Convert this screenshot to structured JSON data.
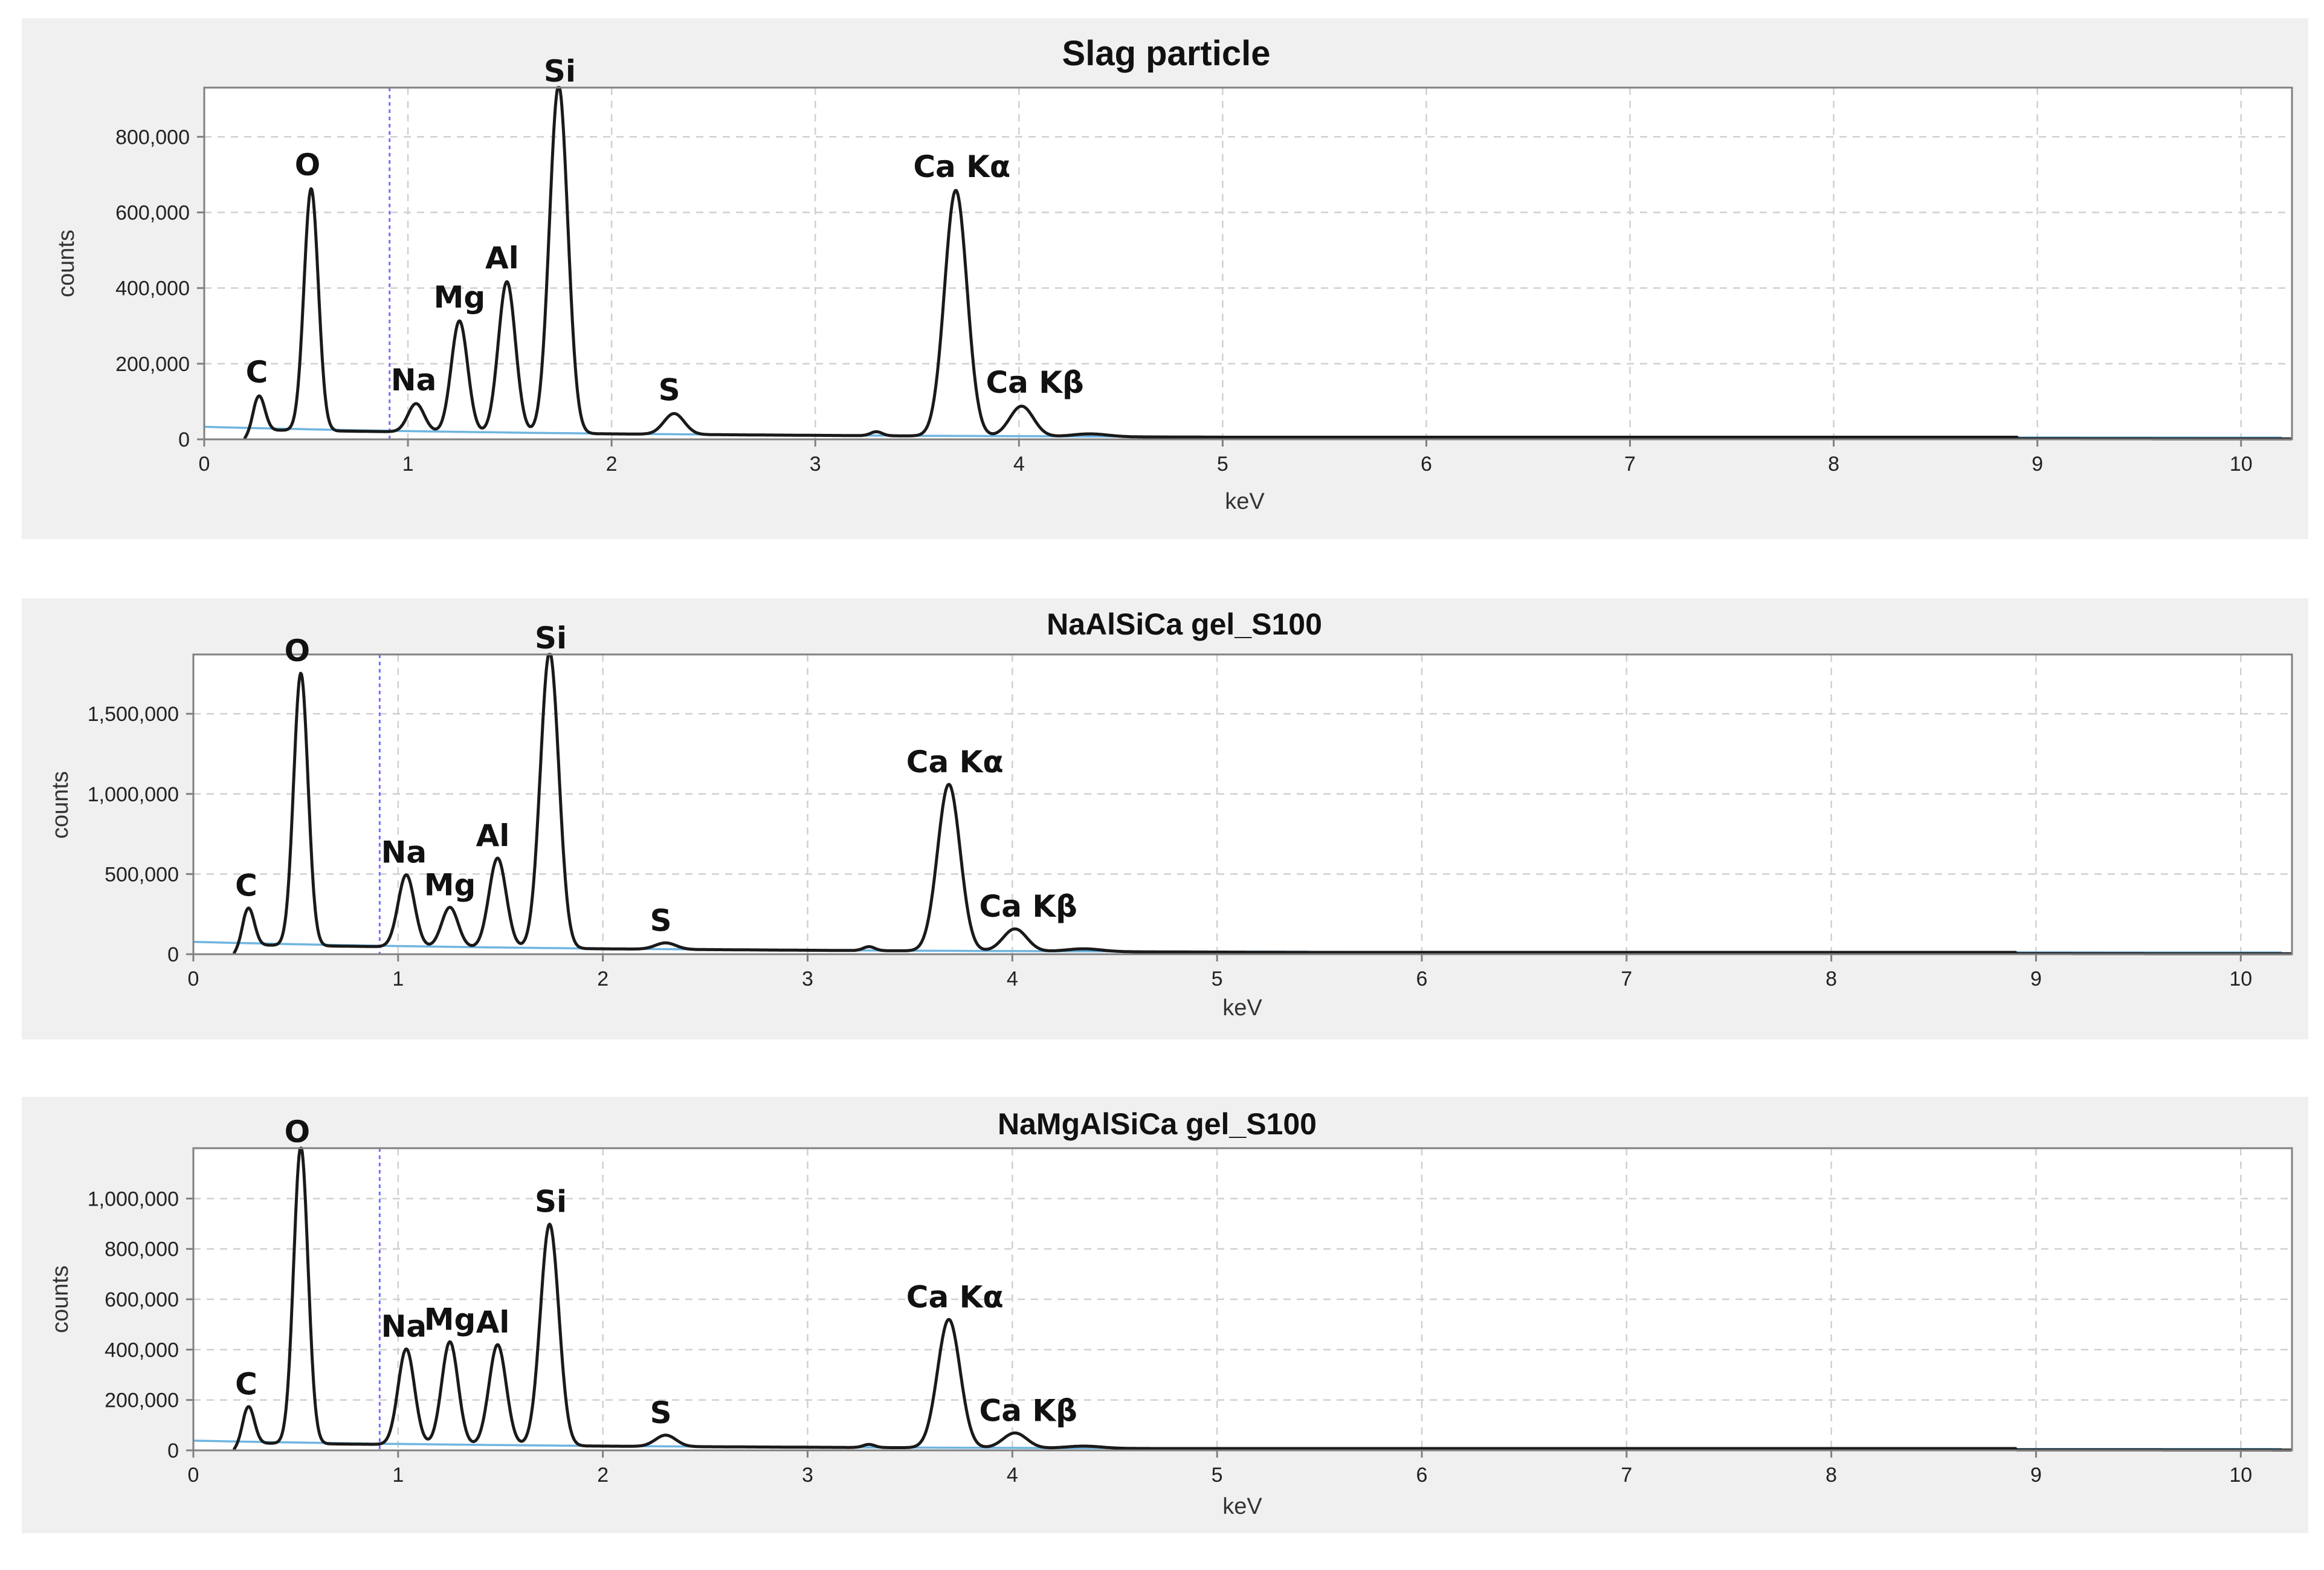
{
  "chart_data": [
    {
      "type": "line",
      "title": "Slag particle",
      "xlabel": "keV",
      "ylabel": "counts",
      "xlim": [
        0,
        10.25
      ],
      "ylim": [
        0,
        930000
      ],
      "xticks": [
        0,
        1,
        2,
        3,
        4,
        5,
        6,
        7,
        8,
        9,
        10
      ],
      "yticks": [
        0,
        200000,
        400000,
        600000,
        800000
      ],
      "ytick_labels": [
        "0",
        "200,000",
        "400,000",
        "600,000",
        "800,000"
      ],
      "grid": true,
      "marker_line_kev": 0.91,
      "background_level": 30000,
      "peaks": [
        {
          "label": "C",
          "kev": 0.27,
          "counts": 90000,
          "width": 0.028
        },
        {
          "label": "O",
          "kev": 0.525,
          "counts": 640000,
          "width": 0.035
        },
        {
          "label": "Na",
          "kev": 1.04,
          "counts": 75000,
          "width": 0.04
        },
        {
          "label": "Mg",
          "kev": 1.253,
          "counts": 295000,
          "width": 0.04
        },
        {
          "label": "Al",
          "kev": 1.486,
          "counts": 400000,
          "width": 0.042
        },
        {
          "label": "Si",
          "kev": 1.74,
          "counts": 920000,
          "width": 0.045
        },
        {
          "label": "S",
          "kev": 2.307,
          "counts": 55000,
          "width": 0.05
        },
        {
          "label": "Ca Kα",
          "kev": 3.69,
          "counts": 650000,
          "width": 0.055
        },
        {
          "label": "Ca Kβ",
          "kev": 4.013,
          "counts": 80000,
          "width": 0.058
        }
      ]
    },
    {
      "type": "line",
      "title": "NaAlSiCa gel_S100",
      "xlabel": "keV",
      "ylabel": "counts",
      "xlim": [
        0,
        10.25
      ],
      "ylim": [
        0,
        1870000
      ],
      "xticks": [
        0,
        1,
        2,
        3,
        4,
        5,
        6,
        7,
        8,
        9,
        10
      ],
      "yticks": [
        0,
        500000,
        1000000,
        1500000
      ],
      "ytick_labels": [
        "0",
        "500,000",
        "1,000,000",
        "1,500,000"
      ],
      "grid": true,
      "marker_line_kev": 0.91,
      "background_level": 70000,
      "peaks": [
        {
          "label": "C",
          "kev": 0.27,
          "counts": 230000,
          "width": 0.028
        },
        {
          "label": "O",
          "kev": 0.525,
          "counts": 1700000,
          "width": 0.035
        },
        {
          "label": "Na",
          "kev": 1.04,
          "counts": 450000,
          "width": 0.04
        },
        {
          "label": "Mg",
          "kev": 1.253,
          "counts": 250000,
          "width": 0.04
        },
        {
          "label": "Al",
          "kev": 1.486,
          "counts": 560000,
          "width": 0.042
        },
        {
          "label": "Si",
          "kev": 1.74,
          "counts": 1850000,
          "width": 0.045
        },
        {
          "label": "S",
          "kev": 2.307,
          "counts": 40000,
          "width": 0.05
        },
        {
          "label": "Ca Kα",
          "kev": 3.69,
          "counts": 1040000,
          "width": 0.055
        },
        {
          "label": "Ca Kβ",
          "kev": 4.013,
          "counts": 140000,
          "width": 0.058
        }
      ]
    },
    {
      "type": "line",
      "title": "NaMgAlSiCa gel_S100",
      "xlabel": "keV",
      "ylabel": "counts",
      "xlim": [
        0,
        10.25
      ],
      "ylim": [
        0,
        1200000
      ],
      "xticks": [
        0,
        1,
        2,
        3,
        4,
        5,
        6,
        7,
        8,
        9,
        10
      ],
      "yticks": [
        0,
        200000,
        400000,
        600000,
        800000,
        1000000
      ],
      "ytick_labels": [
        "0",
        "200,000",
        "400,000",
        "600,000",
        "800,000",
        "1,000,000"
      ],
      "grid": true,
      "marker_line_kev": 0.91,
      "background_level": 35000,
      "peaks": [
        {
          "label": "C",
          "kev": 0.27,
          "counts": 145000,
          "width": 0.028
        },
        {
          "label": "O",
          "kev": 0.525,
          "counts": 1180000,
          "width": 0.035
        },
        {
          "label": "Na",
          "kev": 1.04,
          "counts": 380000,
          "width": 0.04
        },
        {
          "label": "Mg",
          "kev": 1.253,
          "counts": 410000,
          "width": 0.04
        },
        {
          "label": "Al",
          "kev": 1.486,
          "counts": 400000,
          "width": 0.042
        },
        {
          "label": "Si",
          "kev": 1.74,
          "counts": 880000,
          "width": 0.045
        },
        {
          "label": "S",
          "kev": 2.307,
          "counts": 45000,
          "width": 0.05
        },
        {
          "label": "Ca Kα",
          "kev": 3.69,
          "counts": 510000,
          "width": 0.055
        },
        {
          "label": "Ca Kβ",
          "kev": 4.013,
          "counts": 60000,
          "width": 0.058
        }
      ]
    }
  ]
}
